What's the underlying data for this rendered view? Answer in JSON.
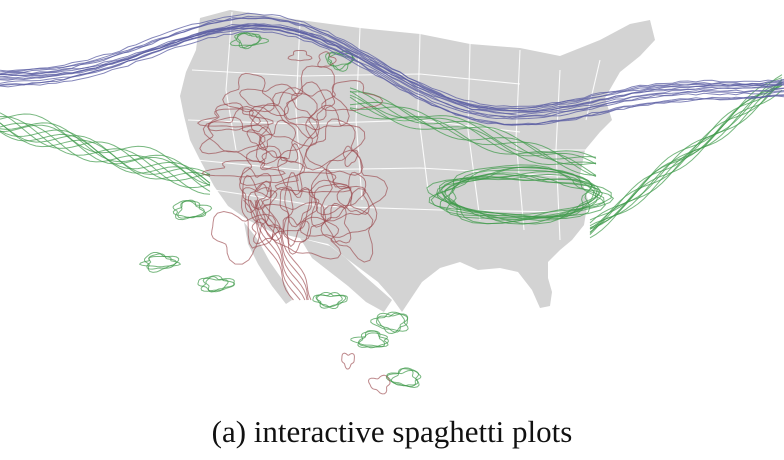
{
  "caption": "(a) interactive spaghetti plots",
  "colors": {
    "land": "#d3d3d3",
    "state_border": "#ffffff",
    "blue_contours": "#5b5ea3",
    "green_contours": "#3e9a4a",
    "red_contours": "#9b4a4e"
  },
  "legend": []
}
